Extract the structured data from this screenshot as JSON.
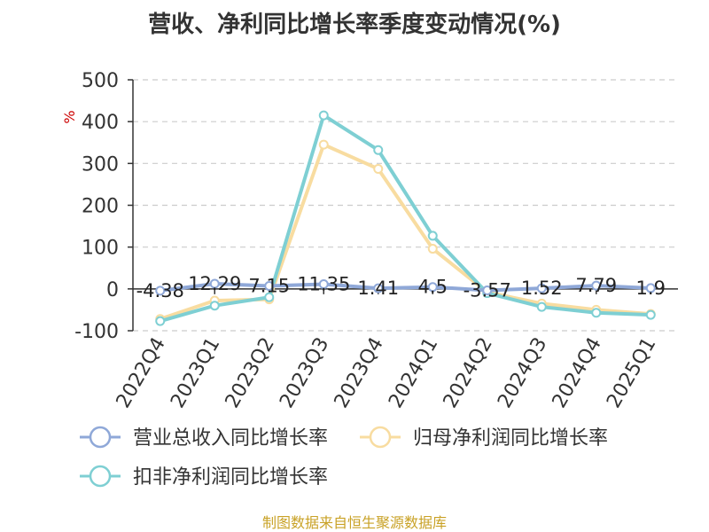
{
  "chart_data": {
    "type": "line",
    "title": "营收、净利同比增长率季度变动情况(%)",
    "ylabel": "%",
    "ylim": [
      -100,
      500
    ],
    "yticks": [
      -100,
      0,
      100,
      200,
      300,
      400,
      500
    ],
    "grid": true,
    "legend_position": "bottom",
    "categories": [
      "2022Q4",
      "2023Q1",
      "2023Q2",
      "2023Q3",
      "2023Q4",
      "2024Q1",
      "2024Q2",
      "2024Q3",
      "2024Q4",
      "2025Q1"
    ],
    "series": [
      {
        "name": "营业总收入同比增长率",
        "color": "#8fa8d8",
        "values": [
          -4.38,
          12.29,
          7.15,
          11.35,
          1.41,
          4.5,
          -3.57,
          1.52,
          7.79,
          1.9
        ],
        "labels": [
          "-4.38",
          "12.29",
          "7.15",
          "11.35",
          "1.41",
          "4.5",
          "-3.57",
          "1.52",
          "7.79",
          "1.9"
        ]
      },
      {
        "name": "归母净利润同比增长率",
        "color": "#f8dca0",
        "values": [
          -72,
          -28,
          -25,
          345,
          287,
          96,
          -8,
          -35,
          -50,
          -60
        ]
      },
      {
        "name": "扣非净利润同比增长率",
        "color": "#7ecfd3",
        "values": [
          -77,
          -40,
          -20,
          415,
          332,
          127,
          -10,
          -43,
          -57,
          -62
        ]
      }
    ]
  },
  "source": "制图数据来自恒生聚源数据库"
}
